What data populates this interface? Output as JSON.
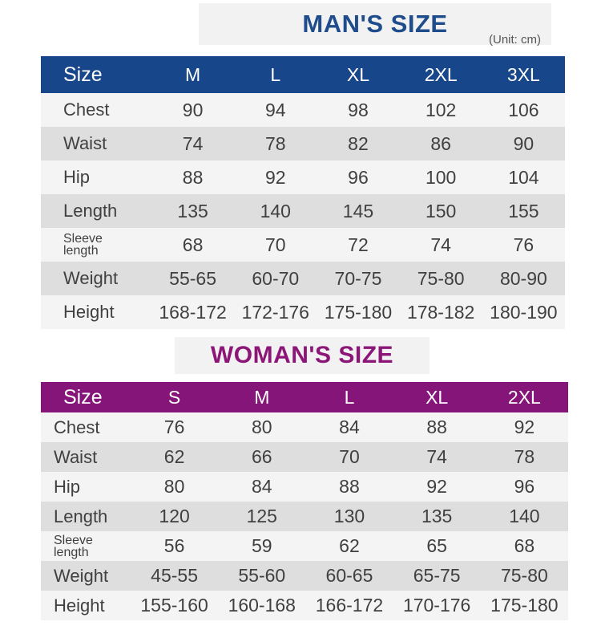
{
  "man": {
    "title": "MAN'S SIZE",
    "unit": "(Unit: cm)",
    "size_label": "Size",
    "sizes": [
      "M",
      "L",
      "XL",
      "2XL",
      "3XL"
    ],
    "rows": [
      {
        "label": "Chest",
        "values": [
          "90",
          "94",
          "98",
          "102",
          "106"
        ]
      },
      {
        "label": "Waist",
        "values": [
          "74",
          "78",
          "82",
          "86",
          "90"
        ]
      },
      {
        "label": "Hip",
        "values": [
          "88",
          "92",
          "96",
          "100",
          "104"
        ]
      },
      {
        "label": "Length",
        "values": [
          "135",
          "140",
          "145",
          "150",
          "155"
        ]
      },
      {
        "label": "Sleeve length",
        "label_line1": "Sleeve",
        "label_line2": "length",
        "values": [
          "68",
          "70",
          "72",
          "74",
          "76"
        ]
      },
      {
        "label": "Weight",
        "values": [
          "55-65",
          "60-70",
          "70-75",
          "75-80",
          "80-90"
        ]
      },
      {
        "label": "Height",
        "values": [
          "168-172",
          "172-176",
          "175-180",
          "178-182",
          "180-190"
        ]
      }
    ]
  },
  "woman": {
    "title": "WOMAN'S SIZE",
    "size_label": "Size",
    "sizes": [
      "S",
      "M",
      "L",
      "XL",
      "2XL"
    ],
    "rows": [
      {
        "label": "Chest",
        "values": [
          "76",
          "80",
          "84",
          "88",
          "92"
        ]
      },
      {
        "label": "Waist",
        "values": [
          "62",
          "66",
          "70",
          "74",
          "78"
        ]
      },
      {
        "label": "Hip",
        "values": [
          "80",
          "84",
          "88",
          "92",
          "96"
        ]
      },
      {
        "label": "Length",
        "values": [
          "120",
          "125",
          "130",
          "135",
          "140"
        ]
      },
      {
        "label": "Sleeve length",
        "label_line1": "Sleeve",
        "label_line2": "length",
        "values": [
          "56",
          "59",
          "62",
          "65",
          "68"
        ]
      },
      {
        "label": "Weight",
        "values": [
          "45-55",
          "55-60",
          "60-65",
          "65-75",
          "75-80"
        ]
      },
      {
        "label": "Height",
        "values": [
          "155-160",
          "160-168",
          "166-172",
          "170-176",
          "175-180"
        ]
      }
    ]
  },
  "colors": {
    "man_accent": "#17468a",
    "woman_accent": "#86157a",
    "row_light": "#f4f4f4",
    "row_dark": "#dedede"
  }
}
